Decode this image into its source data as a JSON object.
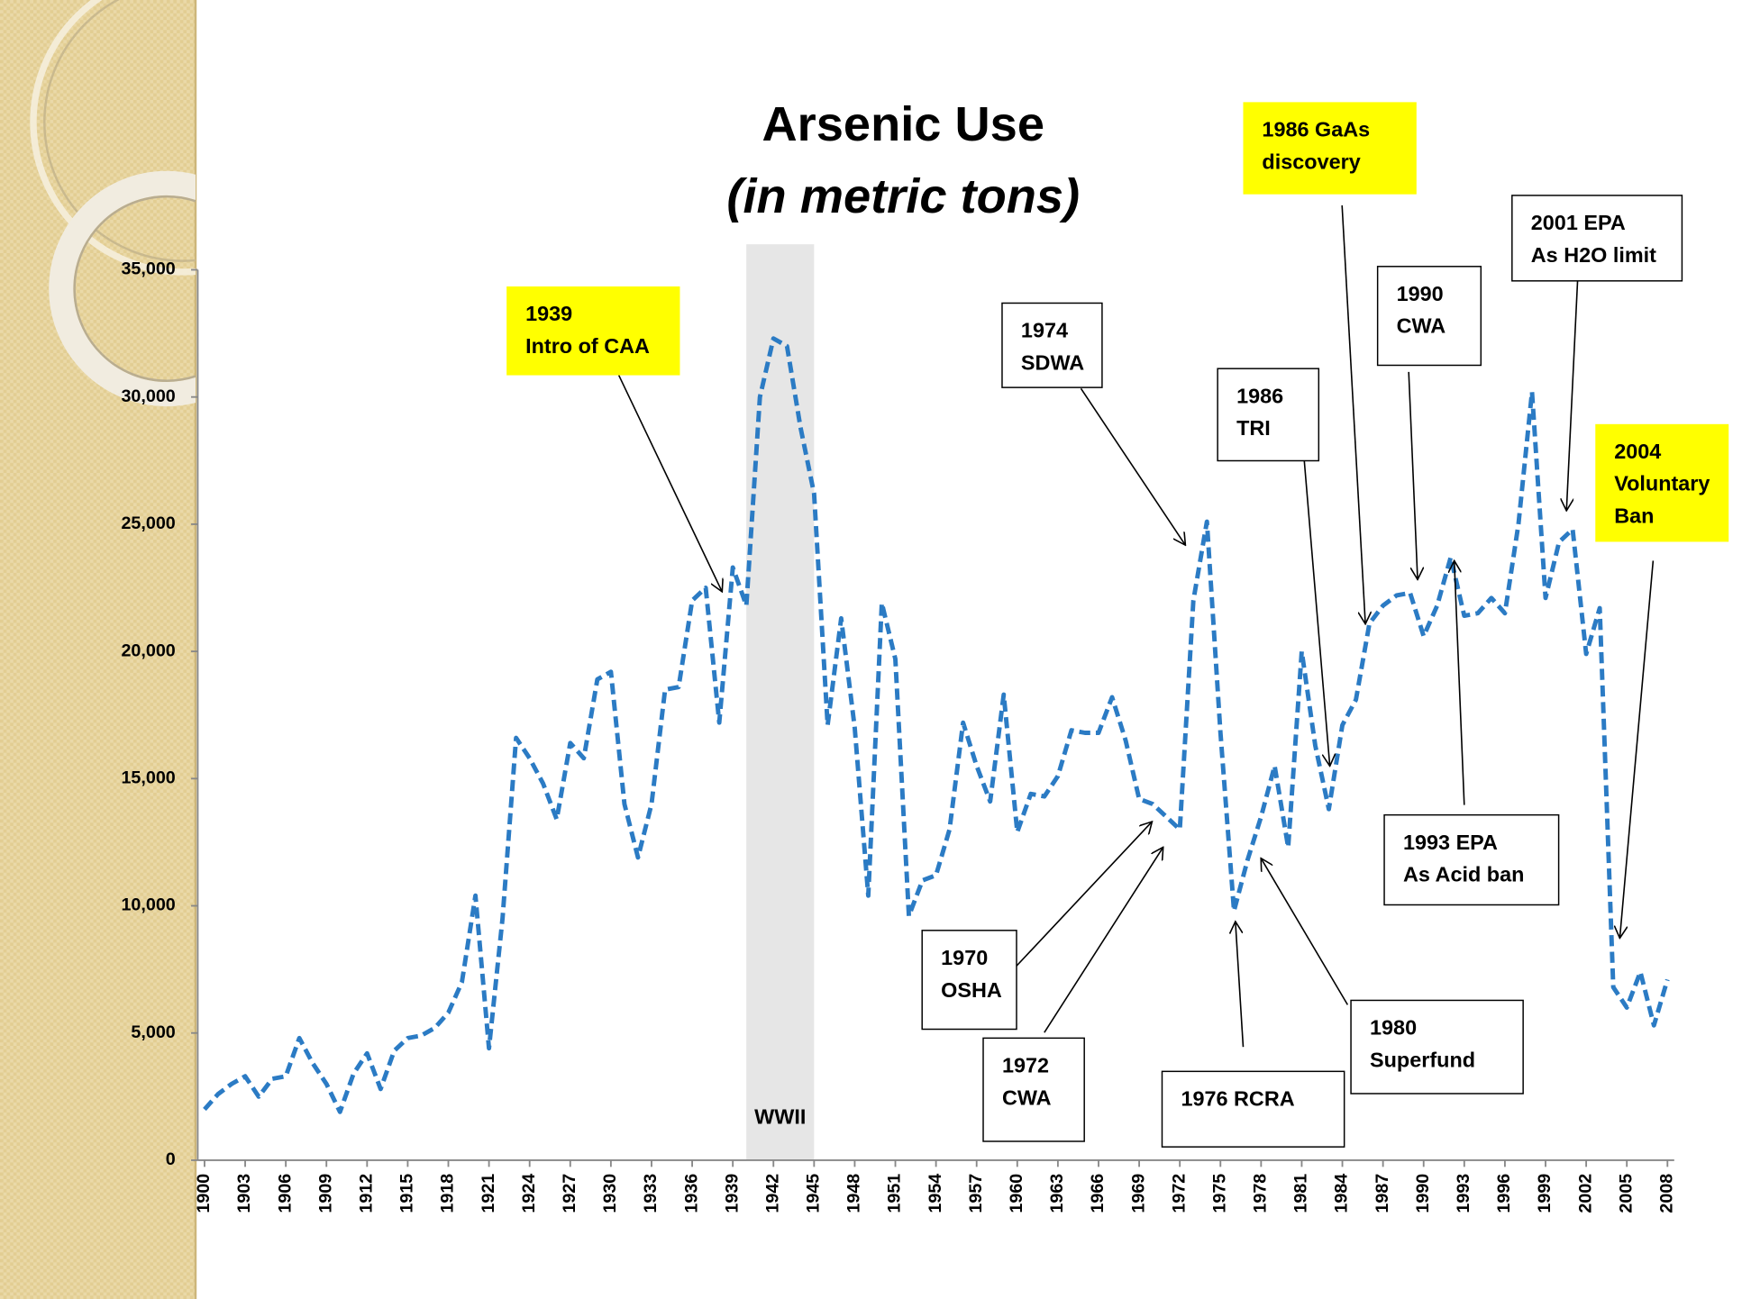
{
  "chart_data": {
    "type": "line",
    "title": "Arsenic  Use",
    "subtitle": "(in metric tons)",
    "x": [
      1900,
      1901,
      1902,
      1903,
      1904,
      1905,
      1906,
      1907,
      1908,
      1909,
      1910,
      1911,
      1912,
      1913,
      1914,
      1915,
      1916,
      1917,
      1918,
      1919,
      1920,
      1921,
      1922,
      1923,
      1924,
      1925,
      1926,
      1927,
      1928,
      1929,
      1930,
      1931,
      1932,
      1933,
      1934,
      1935,
      1936,
      1937,
      1938,
      1939,
      1940,
      1941,
      1942,
      1943,
      1944,
      1945,
      1946,
      1947,
      1948,
      1949,
      1950,
      1951,
      1952,
      1953,
      1954,
      1955,
      1956,
      1957,
      1958,
      1959,
      1960,
      1961,
      1962,
      1963,
      1964,
      1965,
      1966,
      1967,
      1968,
      1969,
      1970,
      1971,
      1972,
      1973,
      1974,
      1975,
      1976,
      1977,
      1978,
      1979,
      1980,
      1981,
      1982,
      1983,
      1984,
      1985,
      1986,
      1987,
      1988,
      1989,
      1990,
      1991,
      1992,
      1993,
      1994,
      1995,
      1996,
      1997,
      1998,
      1999,
      2000,
      2001,
      2002,
      2003,
      2004,
      2005,
      2006,
      2007,
      2008
    ],
    "series": [
      {
        "color": "#2b7bc4",
        "values": [
          2000,
          2600,
          3000,
          3300,
          2500,
          3200,
          3300,
          4800,
          3800,
          3000,
          1900,
          3400,
          4200,
          2800,
          4300,
          4800,
          4900,
          5200,
          5800,
          7000,
          10400,
          4400,
          9500,
          16600,
          15800,
          14800,
          13400,
          16400,
          15800,
          18900,
          19200,
          14000,
          11900,
          14000,
          18500,
          18600,
          22000,
          22500,
          17200,
          23300,
          21800,
          30000,
          32300,
          32000,
          28800,
          26200,
          17100,
          21300,
          17000,
          10400,
          21900,
          19700,
          9600,
          11000,
          11200,
          13000,
          17200,
          15500,
          14100,
          18300,
          12900,
          14400,
          14300,
          15100,
          16900,
          16800,
          16800,
          18200,
          16500,
          14200,
          14000,
          13500,
          13000,
          22000,
          25100,
          16800,
          9800,
          11800,
          13500,
          15500,
          12300,
          20000,
          16300,
          13800,
          17100,
          18100,
          21100,
          21800,
          22200,
          22300,
          20600,
          21800,
          23700,
          21400,
          21500,
          22100,
          21500,
          25000,
          30200,
          22100,
          24300,
          24800,
          19900,
          21700,
          6800,
          6000,
          7400,
          5300,
          7100
        ]
      }
    ],
    "xlim": [
      1899.5,
      2008.5
    ],
    "xticks": [
      1900,
      1903,
      1906,
      1909,
      1912,
      1915,
      1918,
      1921,
      1924,
      1927,
      1930,
      1933,
      1936,
      1939,
      1942,
      1945,
      1948,
      1951,
      1954,
      1957,
      1960,
      1963,
      1966,
      1969,
      1972,
      1975,
      1978,
      1981,
      1984,
      1987,
      1990,
      1993,
      1996,
      1999,
      2002,
      2005,
      2008
    ],
    "ylim": [
      0,
      35000
    ],
    "yticks": [
      0,
      {
        "value": 5000,
        "label": "5,000"
      },
      {
        "value": 10000,
        "label": "10,000"
      },
      {
        "value": 15000,
        "label": "15,000"
      },
      {
        "value": 20000,
        "label": "20,000"
      },
      {
        "value": 25000,
        "label": "25,000"
      },
      {
        "value": 30000,
        "label": "30,000"
      },
      {
        "value": 35000,
        "label": "35,000"
      }
    ],
    "shaded_region": {
      "label": "WWII",
      "x": [
        1940,
        1945
      ],
      "color": "#e6e6e6"
    },
    "annotations": [
      {
        "lines": [
          "1939",
          "Intro of CAA"
        ],
        "color": "#ffff00"
      },
      {
        "lines": [
          "1974",
          "SDWA"
        ],
        "color": "#ffffff"
      },
      {
        "lines": [
          "1986",
          "TRI"
        ],
        "color": "#ffffff"
      },
      {
        "lines": [
          "1986 GaAs",
          "discovery"
        ],
        "color": "#ffff00"
      },
      {
        "lines": [
          "1990",
          "CWA"
        ],
        "color": "#ffffff"
      },
      {
        "lines": [
          "2001 EPA",
          "As H2O limit"
        ],
        "color": "#ffffff"
      },
      {
        "lines": [
          "2004",
          "Voluntary",
          "Ban"
        ],
        "color": "#ffff00"
      },
      {
        "lines": [
          "1993 EPA",
          "As Acid ban"
        ],
        "color": "#ffffff"
      },
      {
        "lines": [
          "1970",
          "OSHA"
        ],
        "color": "#ffffff"
      },
      {
        "lines": [
          "1972",
          "CWA"
        ],
        "color": "#ffffff"
      },
      {
        "lines": [
          "1976 RCRA"
        ],
        "color": "#ffffff"
      },
      {
        "lines": [
          "1980",
          "Superfund"
        ],
        "color": "#ffffff"
      }
    ]
  }
}
